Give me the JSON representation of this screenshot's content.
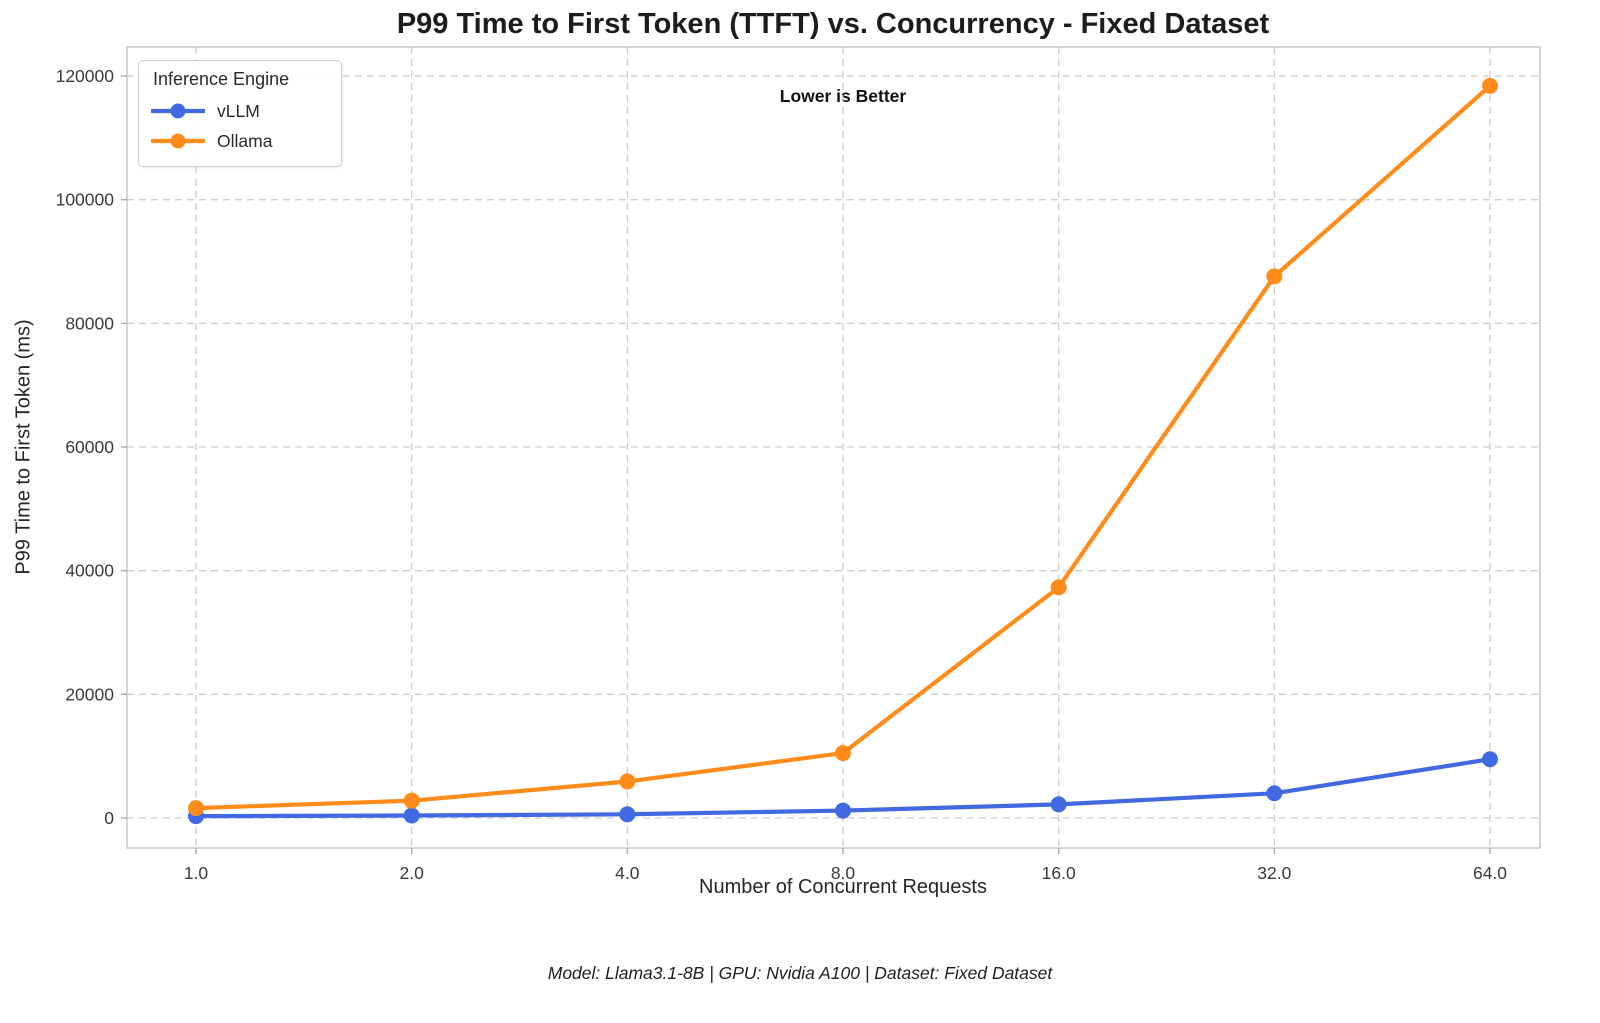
{
  "chart_data": {
    "type": "line",
    "title": "P99 Time to First Token (TTFT) vs. Concurrency - Fixed Dataset",
    "annotation": "Lower is Better",
    "xlabel": "Number of Concurrent Requests",
    "ylabel": "P99 Time to First Token (ms)",
    "footer": "Model: Llama3.1-8B | GPU: Nvidia A100 | Dataset: Fixed Dataset",
    "legend_title": "Inference Engine",
    "x_scale": "log2",
    "grid": true,
    "legend_position": "upper left",
    "categories": [
      1,
      2,
      4,
      8,
      16,
      32,
      64
    ],
    "x_tick_labels": [
      "1.0",
      "2.0",
      "4.0",
      "8.0",
      "16.0",
      "32.0",
      "64.0"
    ],
    "y_ticks": [
      0,
      20000,
      40000,
      60000,
      80000,
      100000,
      120000
    ],
    "y_tick_labels": [
      "0",
      "20000",
      "40000",
      "60000",
      "80000",
      "100000",
      "120000"
    ],
    "ylim": [
      0,
      120000
    ],
    "series": [
      {
        "name": "vLLM",
        "color": "#4169e1",
        "values": [
          300,
          400,
          600,
          1200,
          2200,
          4000,
          9500
        ]
      },
      {
        "name": "Ollama",
        "color": "#ff8c1a",
        "values": [
          1600,
          2800,
          5900,
          10500,
          37300,
          87600,
          118400
        ]
      }
    ]
  },
  "style_colors": {
    "grid": "#cdcdcd",
    "spine": "#c8c8c8",
    "tick": "#ababab",
    "tick_text": "#3a3a3a"
  }
}
